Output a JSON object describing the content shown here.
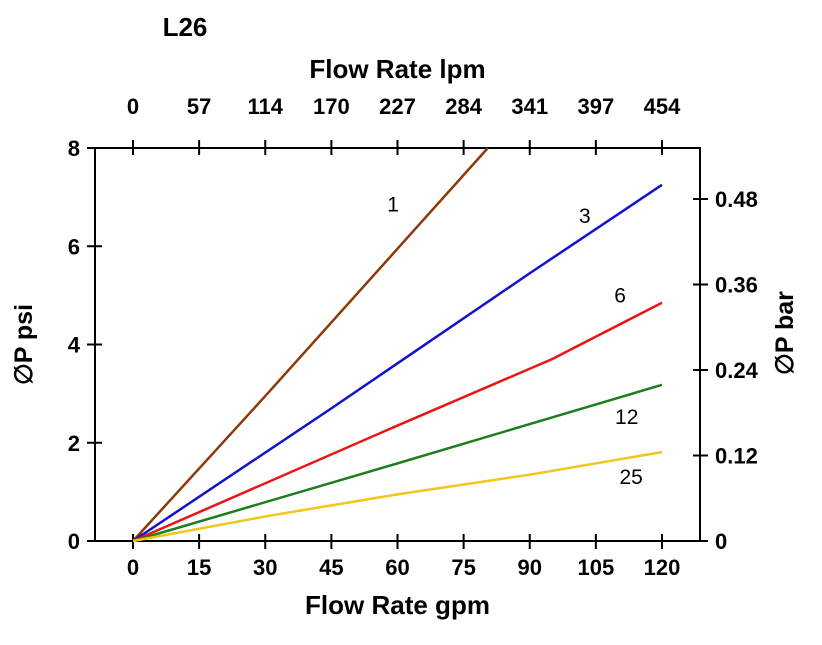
{
  "page": {
    "background": "#ffffff"
  },
  "chart_data": {
    "type": "line",
    "title": "L26",
    "axes": {
      "top": {
        "label": "Flow Rate lpm",
        "ticks": [
          "0",
          "57",
          "114",
          "170",
          "227",
          "284",
          "341",
          "397",
          "454"
        ]
      },
      "bottom": {
        "label": "Flow Rate gpm",
        "ticks": [
          "0",
          "15",
          "30",
          "45",
          "60",
          "75",
          "90",
          "105",
          "120"
        ],
        "range": [
          0,
          120
        ]
      },
      "left": {
        "label": "∅P psi",
        "ticks": [
          "0",
          "2",
          "4",
          "6",
          "8"
        ],
        "range": [
          0,
          8
        ]
      },
      "right": {
        "label": "∅P bar",
        "ticks": [
          "0",
          "0.12",
          "0.24",
          "0.36",
          "0.48"
        ],
        "psi_per_bar": 14.5038
      }
    },
    "grid": false,
    "series": [
      {
        "name": "1",
        "color": "#8a3a08",
        "points": [
          [
            0,
            0
          ],
          [
            30,
            2.95
          ],
          [
            60,
            5.95
          ],
          [
            80.5,
            8
          ]
        ],
        "label_at": [
          59,
          6.85
        ]
      },
      {
        "name": "3",
        "color": "#1212cc",
        "points": [
          [
            0,
            0
          ],
          [
            45,
            2.7
          ],
          [
            90,
            5.45
          ],
          [
            120,
            7.25
          ]
        ],
        "label_at": [
          102.5,
          6.62
        ]
      },
      {
        "name": "6",
        "color": "#ea1414",
        "points": [
          [
            0,
            0
          ],
          [
            60,
            2.35
          ],
          [
            95,
            3.7
          ],
          [
            120,
            4.85
          ]
        ],
        "label_at": [
          110.5,
          5.0
        ]
      },
      {
        "name": "12",
        "color": "#1e7d1e",
        "points": [
          [
            0,
            0
          ],
          [
            60,
            1.58
          ],
          [
            90,
            2.38
          ],
          [
            120,
            3.18
          ]
        ],
        "label_at": [
          112,
          2.52
        ]
      },
      {
        "name": "25",
        "color": "#f3c51c",
        "points": [
          [
            0,
            0
          ],
          [
            30,
            0.5
          ],
          [
            60,
            0.95
          ],
          [
            90,
            1.35
          ],
          [
            120,
            1.81
          ]
        ],
        "label_at": [
          113,
          1.3
        ]
      }
    ]
  }
}
